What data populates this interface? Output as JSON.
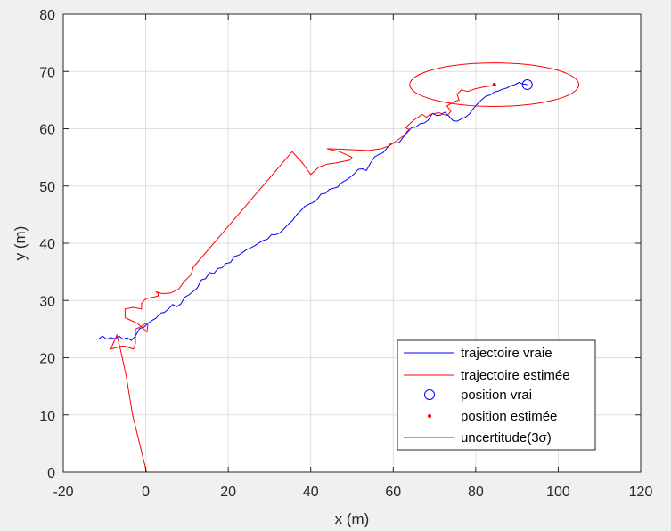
{
  "chart_data": {
    "type": "line",
    "title": "",
    "xlabel": "x (m)",
    "ylabel": "y (m)",
    "xlim": [
      -20,
      120
    ],
    "ylim": [
      0,
      80
    ],
    "xticks": [
      -20,
      0,
      20,
      40,
      60,
      80,
      100,
      120
    ],
    "yticks": [
      0,
      10,
      20,
      30,
      40,
      50,
      60,
      70,
      80
    ],
    "xtick_labels": [
      "-20",
      "0",
      "20",
      "40",
      "60",
      "80",
      "100",
      "120"
    ],
    "ytick_labels": [
      "0",
      "10",
      "20",
      "30",
      "40",
      "50",
      "60",
      "70",
      "80"
    ],
    "grid": true,
    "legend_position": "bottom-right",
    "series": [
      {
        "name": "trajectoire vraie",
        "kind": "line",
        "color": "#0000ff",
        "x": [
          -11.5,
          -10.5,
          -9.5,
          -8.5,
          -7.5,
          -6.5,
          -5.5,
          -4.5,
          -3.5,
          -2.5,
          -1.5,
          -0.5,
          0.5,
          1.5,
          2.5,
          3.5,
          4.5,
          5.5,
          6.5,
          7.5,
          8.5,
          9.5,
          10.5,
          11.5,
          12.5,
          13.5,
          14.5,
          15.5,
          16.5,
          17.5,
          18.5,
          19.5,
          20.5,
          21.5,
          22.5,
          23.5,
          24.5,
          25.5,
          26.5,
          27.5,
          28.5,
          29.5,
          30.5,
          31.5,
          32.5,
          33.5,
          34.5,
          35.5,
          36.5,
          37.5,
          38.5,
          39.5,
          40.5,
          41.5,
          42.5,
          43.5,
          44.5,
          45.5,
          46.5,
          47.5,
          48.5,
          49.5,
          50.5,
          51.5,
          52.5,
          53.5,
          54.5,
          55.5,
          56.5,
          57.5,
          58.5,
          59.5,
          60.5,
          61.5,
          62.5,
          63.5,
          64.5,
          65.5,
          66.5,
          67.5,
          68.5,
          69.5,
          70.5,
          71.5,
          72.5,
          73.5,
          74.5,
          75.5,
          76.5,
          77.5,
          78.5,
          79.5,
          80.5,
          81.5,
          82.5,
          83.5,
          84.5,
          85.5,
          86.5,
          87.5,
          88.5,
          89.5,
          90.5,
          91.5,
          92.5
        ],
        "y": [
          23.2,
          23.8,
          23.2,
          23.5,
          23.3,
          23.8,
          23.2,
          23.5,
          23.0,
          23.8,
          25.1,
          25.3,
          26.0,
          26.5,
          26.9,
          27.8,
          27.9,
          28.5,
          29.3,
          28.9,
          29.4,
          30.6,
          31.0,
          31.6,
          32.2,
          33.6,
          33.8,
          34.9,
          34.7,
          35.6,
          35.7,
          36.5,
          36.6,
          37.7,
          37.9,
          38.4,
          38.9,
          39.2,
          39.6,
          40.1,
          40.5,
          40.7,
          41.5,
          41.5,
          41.8,
          42.5,
          43.3,
          43.9,
          44.9,
          45.6,
          46.4,
          46.8,
          47.1,
          47.6,
          48.6,
          48.7,
          49.4,
          49.6,
          49.8,
          50.6,
          51.0,
          51.5,
          52.1,
          52.9,
          53.0,
          52.7,
          54.0,
          55.1,
          55.5,
          55.8,
          56.6,
          57.5,
          57.5,
          57.6,
          58.6,
          59.6,
          60.2,
          60.3,
          60.9,
          61.0,
          61.5,
          62.7,
          62.3,
          62.4,
          62.9,
          62.2,
          61.4,
          61.3,
          61.7,
          62.0,
          62.6,
          63.6,
          64.4,
          65.1,
          65.7,
          65.9,
          66.4,
          66.6,
          66.9,
          67.1,
          67.5,
          67.7,
          68.1,
          67.8,
          67.7
        ]
      },
      {
        "name": "trajectoire estimée",
        "kind": "line",
        "color": "#ff0000",
        "x": [
          0.2,
          -3.2,
          -4.8,
          -6.0,
          -7.0,
          -8.5,
          -6.0,
          -5.0,
          -3.0,
          -2.5,
          -2.5,
          -1.0,
          0.0,
          0.5,
          0.3,
          -2.0,
          -5.0,
          -5.0,
          -3.0,
          -1.0,
          -1.0,
          0.0,
          2.0,
          3.0,
          3.0,
          2.5,
          4.0,
          6.0,
          8.0,
          9.0,
          10.0,
          11.0,
          11.5,
          35.5,
          38.0,
          40.0,
          42.0,
          44.0,
          46.0,
          48.0,
          49.5,
          50.0,
          48.5,
          47.0,
          44.0,
          45.0,
          48.0,
          51.0,
          54.0,
          57.0,
          59.0,
          61.0,
          63.0,
          64.0,
          63.0,
          65.0,
          66.0,
          67.0,
          68.0,
          69.0,
          71.0,
          73.0,
          74.0,
          73.0,
          75.0,
          76.0,
          75.5,
          76.5,
          78.0,
          80.0,
          82.0,
          84.0,
          84.5
        ],
        "y": [
          0,
          10,
          17,
          21,
          24,
          21.5,
          22,
          22,
          21.5,
          22.5,
          25.0,
          25.5,
          26.0,
          25.8,
          24.5,
          26.0,
          27.0,
          28.5,
          28.8,
          28.5,
          29.5,
          30.3,
          30.6,
          30.8,
          31.2,
          31.5,
          31.2,
          31.3,
          32.0,
          33.0,
          33.8,
          34.5,
          35.8,
          56.0,
          54.0,
          52.0,
          53.3,
          53.8,
          54.0,
          54.3,
          54.5,
          55.0,
          55.5,
          56.0,
          56.5,
          56.5,
          56.4,
          56.3,
          56.2,
          56.5,
          57.0,
          58.0,
          59.0,
          59.8,
          60.2,
          61.5,
          62.0,
          62.5,
          62.0,
          62.5,
          62.8,
          62.3,
          63.0,
          64.0,
          64.8,
          65.0,
          66.0,
          66.8,
          66.5,
          67.0,
          67.3,
          67.5,
          67.7
        ]
      },
      {
        "name": "position vrai",
        "kind": "marker-circle",
        "color": "#0000ff",
        "x": [
          92.5
        ],
        "y": [
          67.7
        ]
      },
      {
        "name": "position estimée",
        "kind": "marker-dot",
        "color": "#ff0000",
        "x": [
          84.5
        ],
        "y": [
          67.7
        ]
      },
      {
        "name": "uncertitude(3σ)",
        "kind": "ellipse",
        "color": "#ff0000",
        "center": [
          84.5,
          67.7
        ],
        "radii": [
          20.5,
          3.8
        ]
      }
    ]
  },
  "legend": {
    "items": [
      {
        "label": "trajectoire vraie",
        "color": "#0000ff",
        "symbol": "line"
      },
      {
        "label": "trajectoire estimée",
        "color": "#ff0000",
        "symbol": "line"
      },
      {
        "label": "position vrai",
        "color": "#0000ff",
        "symbol": "circle"
      },
      {
        "label": "position estimée",
        "color": "#ff0000",
        "symbol": "dot"
      },
      {
        "label": "uncertitude(3σ)",
        "color": "#ff0000",
        "symbol": "line"
      }
    ]
  },
  "style": {
    "figure_bg": "#f0f0f0",
    "axes_bg": "#ffffff",
    "grid_color": "#dfdfdf",
    "axis_color": "#262626"
  }
}
